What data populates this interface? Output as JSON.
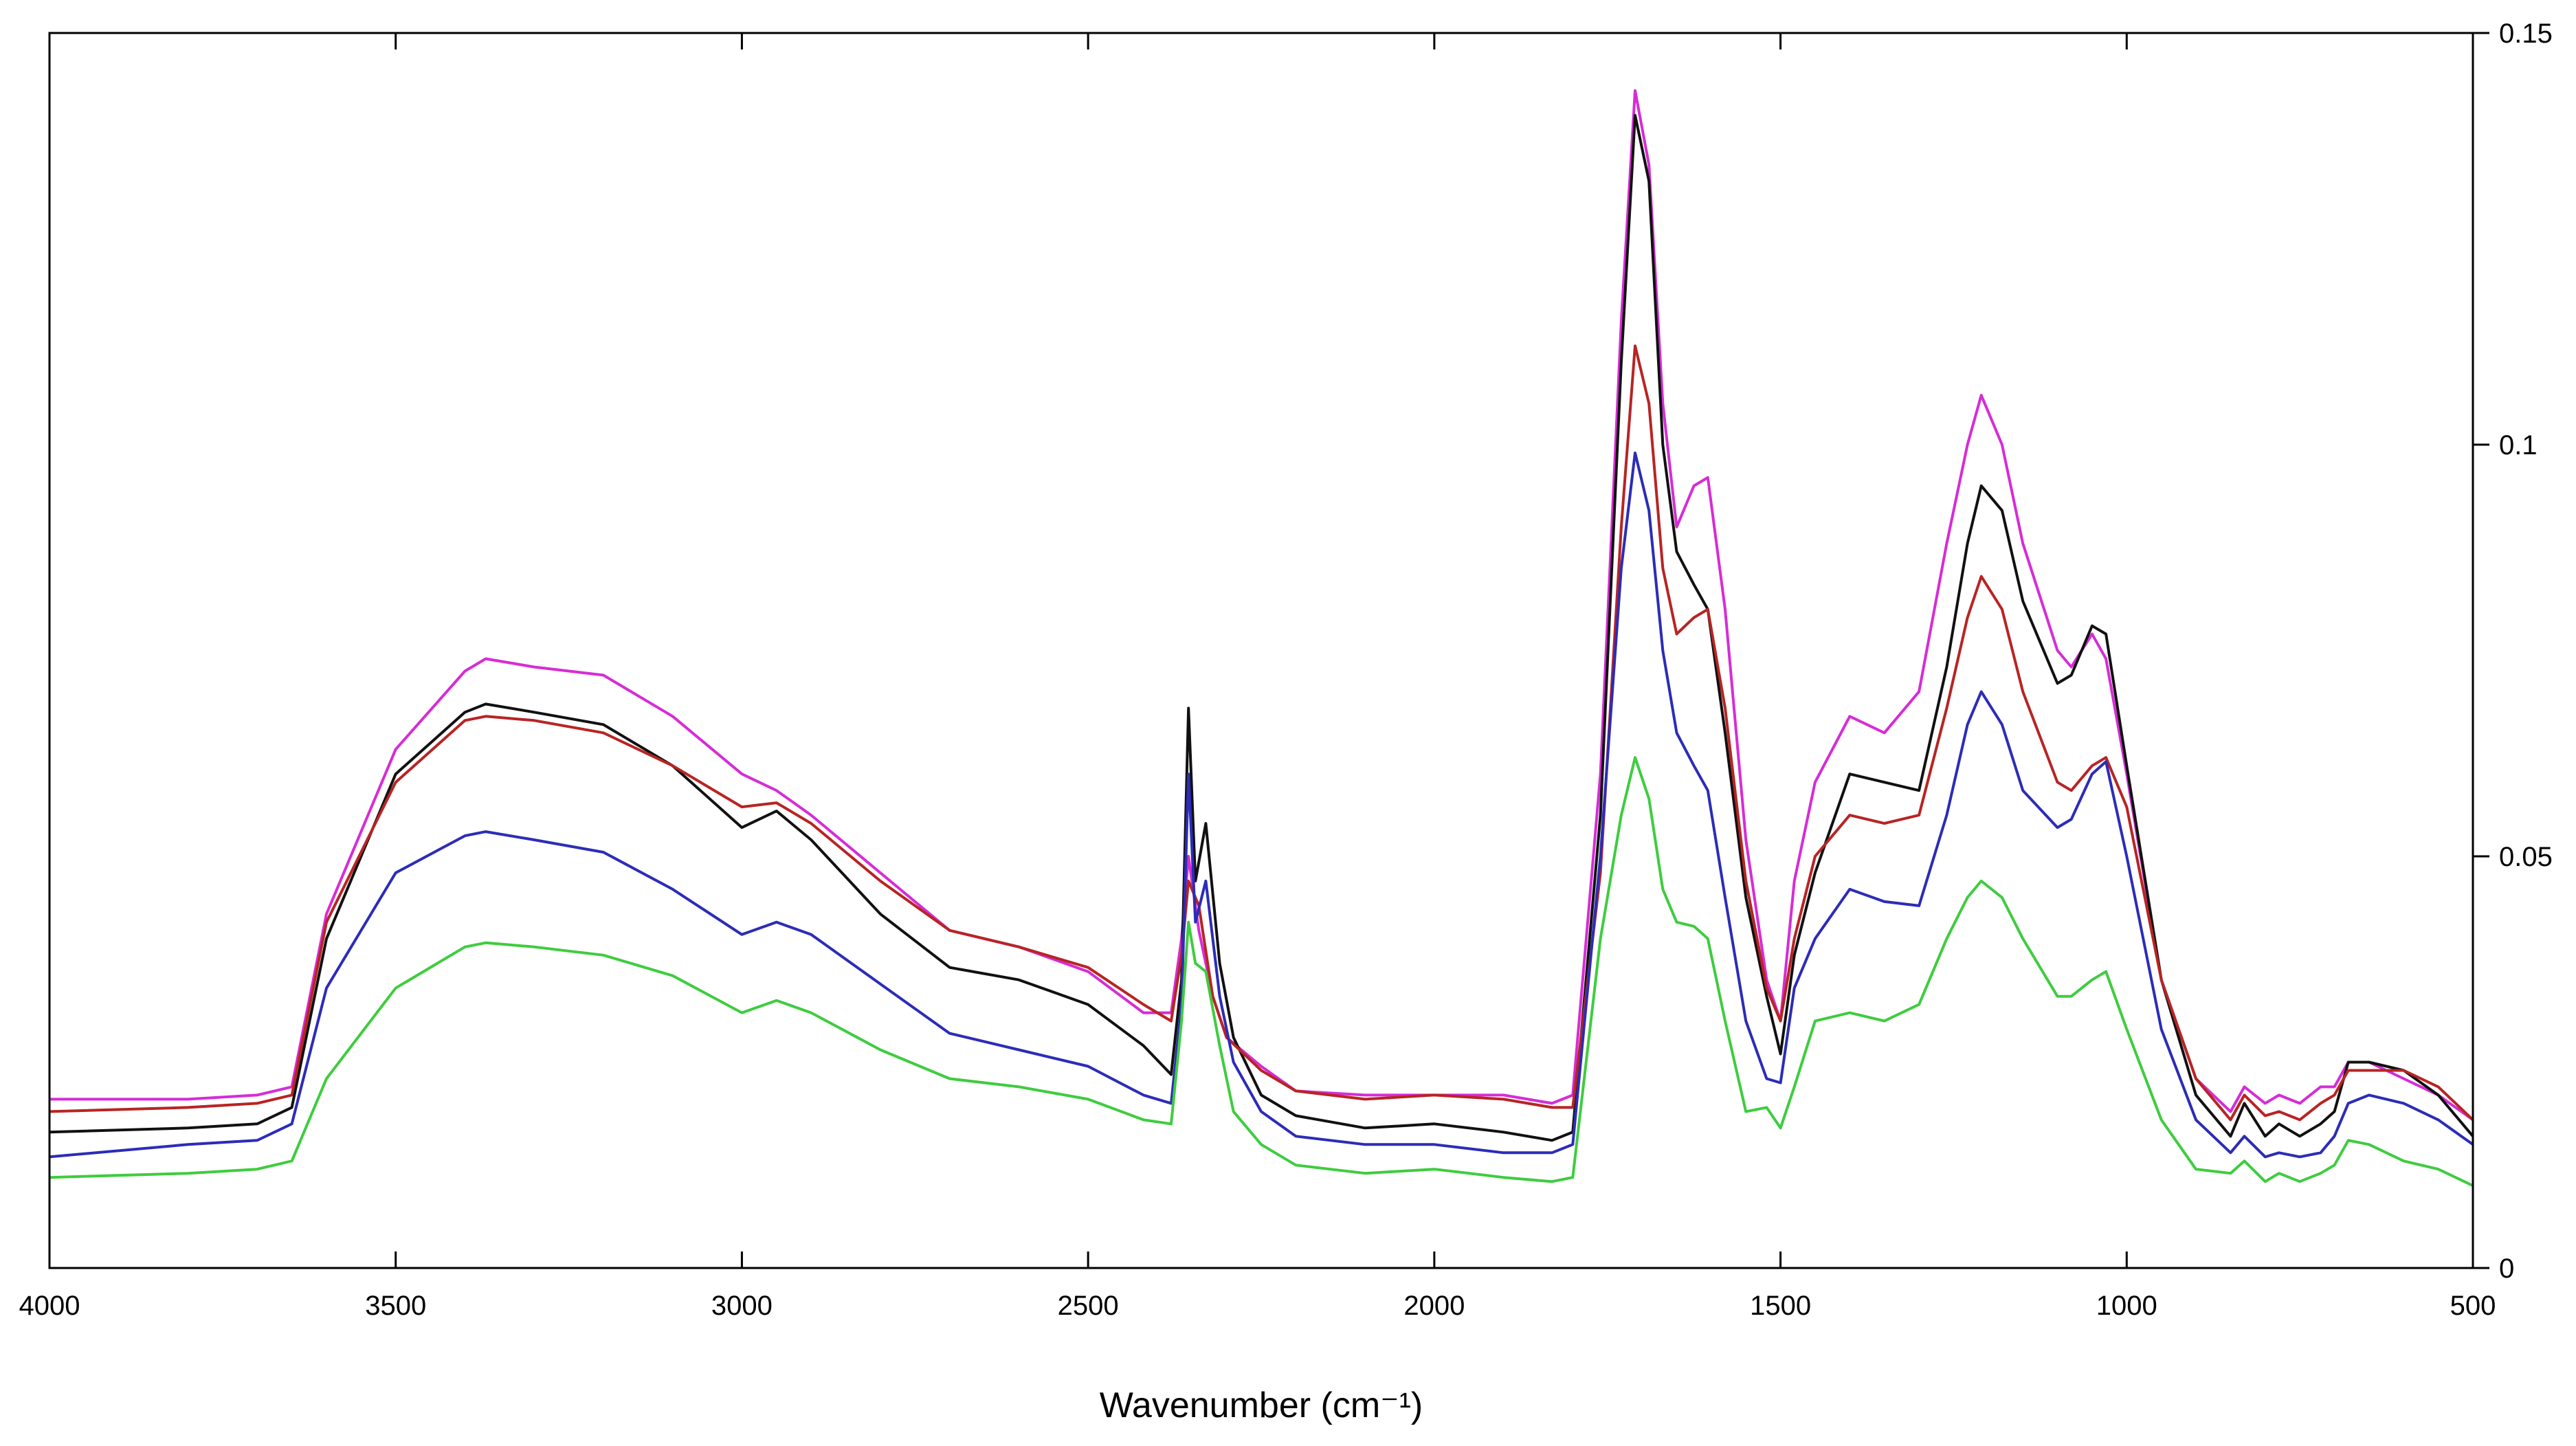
{
  "chart_data": {
    "type": "line",
    "title": "",
    "xlabel": "Wavenumber (cm⁻¹)",
    "ylabel": "",
    "xlim": [
      4000,
      500
    ],
    "ylim": [
      0,
      0.15
    ],
    "x_reversed": true,
    "y_axis_side": "right",
    "grid": false,
    "legend": "none",
    "x_ticks": [
      4000,
      3500,
      3000,
      2500,
      2000,
      1500,
      1000,
      500
    ],
    "x_tick_labels": [
      "4000",
      "3500",
      "3000",
      "2500",
      "2000",
      "1500",
      "1000",
      "500"
    ],
    "y_ticks": [
      0,
      0.05,
      0.1,
      0.15
    ],
    "y_tick_labels": [
      "0",
      "0.05",
      "0.1",
      "0.15"
    ],
    "series": [
      {
        "color": "#d62cd6",
        "x": [
          4000,
          3800,
          3700,
          3650,
          3600,
          3500,
          3400,
          3370,
          3300,
          3200,
          3100,
          3000,
          2950,
          2900,
          2800,
          2700,
          2600,
          2500,
          2420,
          2380,
          2365,
          2355,
          2340,
          2320,
          2300,
          2250,
          2200,
          2100,
          2000,
          1900,
          1830,
          1800,
          1760,
          1730,
          1710,
          1690,
          1670,
          1650,
          1625,
          1605,
          1580,
          1550,
          1520,
          1500,
          1480,
          1450,
          1400,
          1350,
          1300,
          1260,
          1230,
          1210,
          1180,
          1150,
          1100,
          1080,
          1050,
          1030,
          1000,
          950,
          900,
          850,
          830,
          800,
          780,
          750,
          720,
          700,
          680,
          650,
          600,
          550,
          500
        ],
        "y": [
          0.0205,
          0.0205,
          0.021,
          0.022,
          0.043,
          0.063,
          0.0725,
          0.074,
          0.073,
          0.072,
          0.067,
          0.06,
          0.058,
          0.055,
          0.048,
          0.041,
          0.039,
          0.036,
          0.031,
          0.031,
          0.04,
          0.05,
          0.041,
          0.033,
          0.028,
          0.0245,
          0.0215,
          0.021,
          0.021,
          0.021,
          0.02,
          0.021,
          0.06,
          0.115,
          0.143,
          0.134,
          0.105,
          0.09,
          0.095,
          0.096,
          0.08,
          0.052,
          0.035,
          0.03,
          0.047,
          0.059,
          0.067,
          0.065,
          0.07,
          0.088,
          0.1,
          0.106,
          0.1,
          0.088,
          0.075,
          0.073,
          0.077,
          0.074,
          0.06,
          0.035,
          0.023,
          0.019,
          0.022,
          0.02,
          0.021,
          0.02,
          0.022,
          0.022,
          0.025,
          0.025,
          0.023,
          0.021,
          0.018
        ]
      },
      {
        "color": "#111111",
        "x": [
          4000,
          3800,
          3700,
          3650,
          3600,
          3500,
          3400,
          3370,
          3300,
          3200,
          3100,
          3000,
          2950,
          2900,
          2800,
          2700,
          2600,
          2500,
          2420,
          2380,
          2365,
          2355,
          2345,
          2330,
          2310,
          2290,
          2250,
          2200,
          2100,
          2000,
          1900,
          1830,
          1800,
          1760,
          1730,
          1710,
          1690,
          1670,
          1650,
          1625,
          1605,
          1580,
          1550,
          1520,
          1500,
          1480,
          1450,
          1400,
          1350,
          1300,
          1260,
          1230,
          1210,
          1180,
          1150,
          1100,
          1080,
          1050,
          1030,
          1000,
          950,
          900,
          850,
          830,
          800,
          780,
          750,
          720,
          700,
          680,
          650,
          600,
          550,
          500
        ],
        "y": [
          0.0165,
          0.017,
          0.0175,
          0.0195,
          0.04,
          0.06,
          0.0675,
          0.0685,
          0.0675,
          0.066,
          0.061,
          0.0535,
          0.0555,
          0.052,
          0.043,
          0.0365,
          0.035,
          0.032,
          0.027,
          0.0235,
          0.035,
          0.068,
          0.047,
          0.054,
          0.037,
          0.028,
          0.021,
          0.0185,
          0.017,
          0.0175,
          0.0165,
          0.0155,
          0.0165,
          0.055,
          0.11,
          0.14,
          0.132,
          0.1,
          0.087,
          0.083,
          0.08,
          0.065,
          0.045,
          0.033,
          0.026,
          0.038,
          0.048,
          0.06,
          0.059,
          0.058,
          0.073,
          0.088,
          0.095,
          0.092,
          0.081,
          0.071,
          0.072,
          0.078,
          0.077,
          0.061,
          0.035,
          0.021,
          0.016,
          0.02,
          0.016,
          0.0175,
          0.016,
          0.0175,
          0.019,
          0.025,
          0.025,
          0.024,
          0.021,
          0.016
        ]
      },
      {
        "color": "#b82424",
        "x": [
          4000,
          3800,
          3700,
          3650,
          3600,
          3500,
          3400,
          3370,
          3300,
          3200,
          3100,
          3000,
          2950,
          2900,
          2800,
          2700,
          2600,
          2500,
          2420,
          2380,
          2365,
          2355,
          2340,
          2320,
          2300,
          2250,
          2200,
          2100,
          2000,
          1900,
          1830,
          1800,
          1760,
          1730,
          1710,
          1690,
          1670,
          1650,
          1625,
          1605,
          1580,
          1550,
          1520,
          1500,
          1480,
          1450,
          1400,
          1350,
          1300,
          1260,
          1230,
          1210,
          1180,
          1150,
          1100,
          1080,
          1050,
          1030,
          1000,
          950,
          900,
          850,
          830,
          800,
          780,
          750,
          720,
          700,
          680,
          650,
          600,
          550,
          500
        ],
        "y": [
          0.019,
          0.0195,
          0.02,
          0.021,
          0.042,
          0.059,
          0.0665,
          0.067,
          0.0665,
          0.065,
          0.061,
          0.056,
          0.0565,
          0.054,
          0.047,
          0.041,
          0.039,
          0.0365,
          0.032,
          0.03,
          0.038,
          0.047,
          0.044,
          0.033,
          0.028,
          0.024,
          0.0215,
          0.0205,
          0.021,
          0.0205,
          0.0195,
          0.0195,
          0.048,
          0.09,
          0.112,
          0.105,
          0.085,
          0.077,
          0.079,
          0.08,
          0.068,
          0.047,
          0.034,
          0.03,
          0.04,
          0.05,
          0.055,
          0.054,
          0.055,
          0.068,
          0.079,
          0.084,
          0.08,
          0.07,
          0.059,
          0.058,
          0.061,
          0.062,
          0.056,
          0.035,
          0.023,
          0.018,
          0.021,
          0.0185,
          0.019,
          0.018,
          0.02,
          0.021,
          0.024,
          0.024,
          0.024,
          0.022,
          0.018
        ]
      },
      {
        "color": "#2c2cb8",
        "x": [
          4000,
          3800,
          3700,
          3650,
          3600,
          3500,
          3400,
          3370,
          3300,
          3200,
          3100,
          3000,
          2950,
          2900,
          2800,
          2700,
          2600,
          2500,
          2420,
          2380,
          2365,
          2355,
          2345,
          2330,
          2310,
          2290,
          2250,
          2200,
          2100,
          2000,
          1900,
          1830,
          1800,
          1760,
          1730,
          1710,
          1690,
          1670,
          1650,
          1625,
          1605,
          1580,
          1550,
          1520,
          1500,
          1480,
          1450,
          1400,
          1350,
          1300,
          1260,
          1230,
          1210,
          1180,
          1150,
          1100,
          1080,
          1050,
          1030,
          1000,
          950,
          900,
          850,
          830,
          800,
          780,
          750,
          720,
          700,
          680,
          650,
          600,
          550,
          500
        ],
        "y": [
          0.0135,
          0.015,
          0.0155,
          0.0175,
          0.034,
          0.048,
          0.0525,
          0.053,
          0.052,
          0.0505,
          0.046,
          0.0405,
          0.042,
          0.0405,
          0.0345,
          0.0285,
          0.0265,
          0.0245,
          0.021,
          0.02,
          0.032,
          0.06,
          0.042,
          0.047,
          0.033,
          0.025,
          0.019,
          0.016,
          0.015,
          0.015,
          0.014,
          0.014,
          0.015,
          0.05,
          0.085,
          0.099,
          0.092,
          0.075,
          0.065,
          0.061,
          0.058,
          0.045,
          0.03,
          0.023,
          0.0225,
          0.034,
          0.04,
          0.046,
          0.0445,
          0.044,
          0.055,
          0.066,
          0.07,
          0.066,
          0.058,
          0.0535,
          0.0545,
          0.06,
          0.0615,
          0.05,
          0.029,
          0.018,
          0.014,
          0.016,
          0.0135,
          0.014,
          0.0135,
          0.014,
          0.016,
          0.02,
          0.021,
          0.02,
          0.018,
          0.015
        ]
      },
      {
        "color": "#3fcc3f",
        "x": [
          4000,
          3800,
          3700,
          3650,
          3600,
          3500,
          3400,
          3370,
          3300,
          3200,
          3100,
          3000,
          2950,
          2900,
          2800,
          2700,
          2600,
          2500,
          2420,
          2380,
          2365,
          2355,
          2345,
          2330,
          2310,
          2290,
          2250,
          2200,
          2100,
          2000,
          1900,
          1830,
          1800,
          1760,
          1730,
          1710,
          1690,
          1670,
          1650,
          1625,
          1605,
          1580,
          1550,
          1520,
          1500,
          1480,
          1450,
          1400,
          1350,
          1300,
          1260,
          1230,
          1210,
          1180,
          1150,
          1100,
          1080,
          1050,
          1030,
          1000,
          950,
          900,
          850,
          830,
          800,
          780,
          750,
          720,
          700,
          680,
          650,
          600,
          550,
          500
        ],
        "y": [
          0.011,
          0.0115,
          0.012,
          0.013,
          0.023,
          0.034,
          0.039,
          0.0395,
          0.039,
          0.038,
          0.0355,
          0.031,
          0.0325,
          0.031,
          0.0265,
          0.023,
          0.022,
          0.0205,
          0.018,
          0.0175,
          0.03,
          0.042,
          0.037,
          0.036,
          0.027,
          0.019,
          0.015,
          0.0125,
          0.0115,
          0.012,
          0.011,
          0.0105,
          0.011,
          0.04,
          0.055,
          0.062,
          0.057,
          0.046,
          0.042,
          0.0415,
          0.04,
          0.03,
          0.019,
          0.0195,
          0.017,
          0.022,
          0.03,
          0.031,
          0.03,
          0.032,
          0.04,
          0.045,
          0.047,
          0.045,
          0.04,
          0.033,
          0.033,
          0.035,
          0.036,
          0.029,
          0.018,
          0.012,
          0.0115,
          0.013,
          0.0105,
          0.0115,
          0.0105,
          0.0115,
          0.0125,
          0.0155,
          0.015,
          0.013,
          0.012,
          0.01
        ]
      }
    ]
  }
}
